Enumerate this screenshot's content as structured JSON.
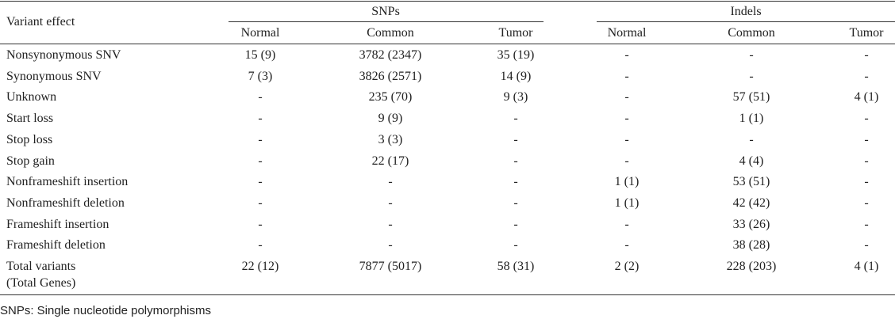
{
  "table": {
    "row_header": "Variant effect",
    "groups": [
      "SNPs",
      "Indels"
    ],
    "columns": [
      "Normal",
      "Common",
      "Tumor",
      "Normal",
      "Common",
      "Tumor"
    ],
    "rows": [
      {
        "label": "Nonsynonymous SNV",
        "cells": [
          "15 (9)",
          "3782 (2347)",
          "35 (19)",
          "-",
          "-",
          "-"
        ]
      },
      {
        "label": "Synonymous SNV",
        "cells": [
          "7 (3)",
          "3826 (2571)",
          "14 (9)",
          "-",
          "-",
          "-"
        ]
      },
      {
        "label": "Unknown",
        "cells": [
          "-",
          "235 (70)",
          "9 (3)",
          "-",
          "57 (51)",
          "4 (1)"
        ]
      },
      {
        "label": "Start loss",
        "cells": [
          "-",
          "9 (9)",
          "-",
          "-",
          "1 (1)",
          "-"
        ]
      },
      {
        "label": "Stop loss",
        "cells": [
          "-",
          "3 (3)",
          "-",
          "-",
          "-",
          "-"
        ]
      },
      {
        "label": "Stop gain",
        "cells": [
          "-",
          "22 (17)",
          "-",
          "-",
          "4 (4)",
          "-"
        ]
      },
      {
        "label": "Nonframeshift insertion",
        "cells": [
          "-",
          "-",
          "-",
          "1 (1)",
          "53 (51)",
          "-"
        ]
      },
      {
        "label": "Nonframeshift deletion",
        "cells": [
          "-",
          "-",
          "-",
          "1 (1)",
          "42 (42)",
          "-"
        ]
      },
      {
        "label": "Frameshift insertion",
        "cells": [
          "-",
          "-",
          "-",
          "-",
          "33 (26)",
          "-"
        ]
      },
      {
        "label": "Frameshift deletion",
        "cells": [
          "-",
          "-",
          "-",
          "-",
          "38 (28)",
          "-"
        ]
      },
      {
        "label": "Total variants",
        "sublabel": "(Total Genes)",
        "cells": [
          "22 (12)",
          "7877 (5017)",
          "58 (31)",
          "2 (2)",
          "228 (203)",
          "4 (1)"
        ]
      }
    ]
  },
  "footnote": "SNPs: Single nucleotide polymorphisms"
}
